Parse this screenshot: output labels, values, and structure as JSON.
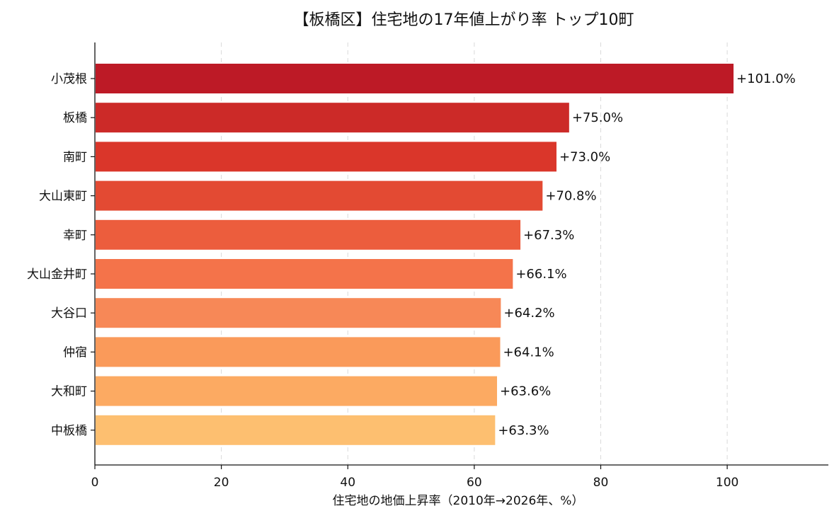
{
  "chart_data": {
    "type": "bar",
    "orientation": "horizontal",
    "title": "【板橋区】住宅地の17年値上がり率 トップ10町",
    "xlabel": "住宅地の地価上昇率（2010年→2026年、%）",
    "ylabel": "",
    "xlim": [
      0,
      116
    ],
    "xticks": [
      0,
      20,
      40,
      60,
      80,
      100
    ],
    "grid": "vertical-dashed",
    "categories": [
      "小茂根",
      "板橋",
      "南町",
      "大山東町",
      "幸町",
      "大山金井町",
      "大谷口",
      "仲宿",
      "大和町",
      "中板橋"
    ],
    "values": [
      101.0,
      75.0,
      73.0,
      70.8,
      67.3,
      66.1,
      64.2,
      64.1,
      63.6,
      63.3
    ],
    "data_labels": [
      "+101.0%",
      "+75.0%",
      "+73.0%",
      "+70.8%",
      "+67.3%",
      "+66.1%",
      "+64.2%",
      "+64.1%",
      "+63.6%",
      "+63.3%"
    ],
    "colors": [
      "#bd1a26",
      "#cc2a28",
      "#da362a",
      "#e34a33",
      "#ec5d3d",
      "#f4734a",
      "#f78857",
      "#fa9a5a",
      "#fcaa62",
      "#fdbf70"
    ]
  }
}
